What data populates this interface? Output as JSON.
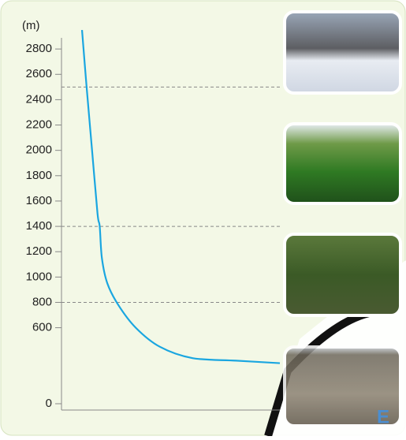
{
  "chart_data": {
    "type": "line",
    "y_label": "(m)",
    "corner_label": "E",
    "x": [
      9.4,
      11.5,
      14,
      16.5,
      17.5,
      18.5,
      21,
      26,
      34,
      45,
      60,
      80,
      100
    ],
    "series": [
      {
        "color": "#1aa6e0",
        "values": [
          2950,
          2500,
          2000,
          1500,
          1400,
          1150,
          950,
          780,
          600,
          450,
          360,
          340,
          320
        ]
      }
    ],
    "xlim": [
      0,
      100
    ],
    "ylim": [
      0,
      3000
    ],
    "yticks": [
      0,
      600,
      800,
      1000,
      1200,
      1400,
      1600,
      1800,
      2000,
      2200,
      2400,
      2600,
      2800
    ],
    "reference_lines": [
      2500,
      1400,
      800
    ]
  }
}
